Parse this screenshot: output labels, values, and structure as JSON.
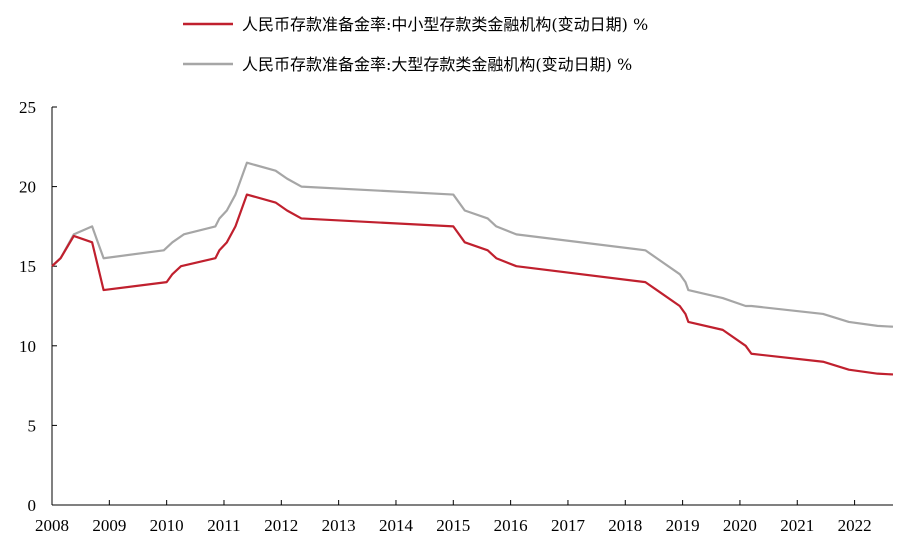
{
  "chart_data": {
    "type": "line",
    "title": "",
    "xlabel": "",
    "ylabel": "",
    "xlim": [
      2008,
      2022.67
    ],
    "ylim": [
      0,
      25
    ],
    "y_ticks": [
      0,
      5,
      10,
      15,
      20,
      25
    ],
    "x_ticks": [
      "2008",
      "2009",
      "2010",
      "2011",
      "2012",
      "2013",
      "2014",
      "2015",
      "2016",
      "2017",
      "2018",
      "2019",
      "2020",
      "2021",
      "2022"
    ],
    "grid": false,
    "legend_position": "top",
    "series": [
      {
        "name": "人民币存款准备金率:中小型存款类金融机构(变动日期)  %",
        "color": "#c0202e",
        "points": [
          [
            2008,
            15
          ],
          [
            2008.15,
            15.5
          ],
          [
            2008.38,
            16.9
          ],
          [
            2008.7,
            16.5
          ],
          [
            2008.9,
            13.5
          ],
          [
            2010.0,
            14.0
          ],
          [
            2010.1,
            14.5
          ],
          [
            2010.25,
            15.0
          ],
          [
            2010.85,
            15.5
          ],
          [
            2010.92,
            16.0
          ],
          [
            2011.05,
            16.5
          ],
          [
            2011.2,
            17.5
          ],
          [
            2011.4,
            19.5
          ],
          [
            2011.9,
            19.0
          ],
          [
            2012.1,
            18.5
          ],
          [
            2012.35,
            18.0
          ],
          [
            2015.0,
            17.5
          ],
          [
            2015.2,
            16.5
          ],
          [
            2015.6,
            16.0
          ],
          [
            2015.75,
            15.5
          ],
          [
            2016.1,
            15.0
          ],
          [
            2018.35,
            14.0
          ],
          [
            2018.55,
            13.5
          ],
          [
            2018.95,
            12.5
          ],
          [
            2019.05,
            12.0
          ],
          [
            2019.1,
            11.5
          ],
          [
            2019.7,
            11.0
          ],
          [
            2020.1,
            10.0
          ],
          [
            2020.2,
            9.5
          ],
          [
            2021.45,
            9.0
          ],
          [
            2021.9,
            8.5
          ],
          [
            2022.4,
            8.25
          ],
          [
            2022.67,
            8.2
          ]
        ]
      },
      {
        "name": "人民币存款准备金率:大型存款类金融机构(变动日期)  %",
        "color": "#a6a6a6",
        "points": [
          [
            2008,
            15
          ],
          [
            2008.15,
            15.5
          ],
          [
            2008.38,
            17.0
          ],
          [
            2008.7,
            17.5
          ],
          [
            2008.8,
            16.5
          ],
          [
            2008.9,
            15.5
          ],
          [
            2009.95,
            16.0
          ],
          [
            2010.1,
            16.5
          ],
          [
            2010.3,
            17.0
          ],
          [
            2010.85,
            17.5
          ],
          [
            2010.92,
            18.0
          ],
          [
            2011.05,
            18.5
          ],
          [
            2011.2,
            19.5
          ],
          [
            2011.4,
            21.5
          ],
          [
            2011.9,
            21.0
          ],
          [
            2012.1,
            20.5
          ],
          [
            2012.35,
            20.0
          ],
          [
            2015.0,
            19.5
          ],
          [
            2015.2,
            18.5
          ],
          [
            2015.6,
            18.0
          ],
          [
            2015.75,
            17.5
          ],
          [
            2016.1,
            17.0
          ],
          [
            2018.35,
            16.0
          ],
          [
            2018.55,
            15.5
          ],
          [
            2018.95,
            14.5
          ],
          [
            2019.05,
            14.0
          ],
          [
            2019.1,
            13.5
          ],
          [
            2019.7,
            13.0
          ],
          [
            2020.1,
            12.5
          ],
          [
            2020.2,
            12.5
          ],
          [
            2021.45,
            12.0
          ],
          [
            2021.9,
            11.5
          ],
          [
            2022.4,
            11.25
          ],
          [
            2022.67,
            11.2
          ]
        ]
      }
    ]
  }
}
